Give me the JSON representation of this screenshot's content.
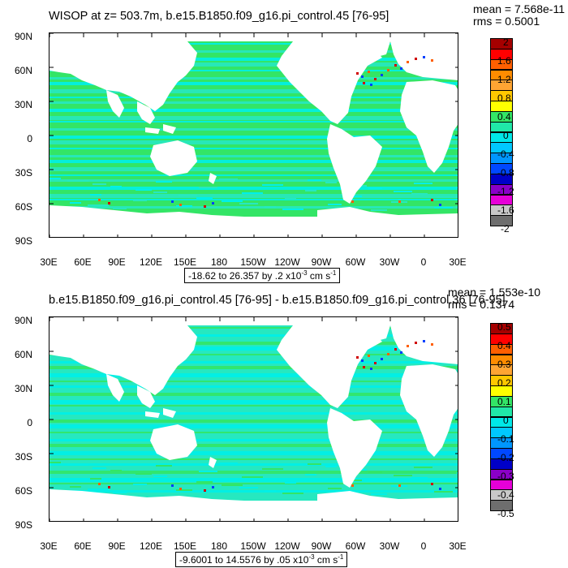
{
  "colors": {
    "bg": "#ffffff",
    "land": "#ffffff",
    "ocean_main": "#33e566",
    "ocean_alt": "#26e8c0",
    "ocean_cyan": "#00f0e8",
    "anomaly_red": "#d00000",
    "anomaly_blue": "#0040ff"
  },
  "palette": [
    "#a50000",
    "#ff0000",
    "#ff5f00",
    "#ff8c00",
    "#ffa533",
    "#ffc800",
    "#ffff00",
    "#33e566",
    "#20e8a8",
    "#00e8e8",
    "#00c8ff",
    "#0096ff",
    "#0048ff",
    "#0000c8",
    "#8a00c8",
    "#e600d8",
    "#c8c8c8",
    "#6e6e6e"
  ],
  "lat_labels": [
    "90N",
    "60N",
    "30N",
    "0",
    "30S",
    "60S",
    "90S"
  ],
  "lon_labels": [
    "30E",
    "60E",
    "90E",
    "120E",
    "150E",
    "180",
    "150W",
    "120W",
    "90W",
    "60W",
    "30W",
    "0",
    "30E"
  ],
  "panels": [
    {
      "title": "WISOP at z= 503.7m, b.e15.B1850.f09_g16.pi_control.45 [76-95]",
      "mean": "mean = 7.568e-11",
      "rms": "rms = 0.5001",
      "range_text": "-18.62 to 26.357 by .2 x10",
      "range_exp": "-3",
      "range_units": " cm s",
      "range_units_exp": "-1",
      "levels": [
        "2",
        "1.6",
        "1.2",
        "0.8",
        "0.4",
        "0",
        "-0.4",
        "-0.8",
        "-1.2",
        "-1.6",
        "-2"
      ]
    },
    {
      "title": "b.e15.B1850.f09_g16.pi_control.45 [76-95] - b.e15.B1850.f09_g16.pi_control.36 [76-95]",
      "mean": "mean = 1.553e-10",
      "rms": "rms = 0.1374",
      "range_text": "-9.6001 to 14.5576 by .05 x10",
      "range_exp": "-3",
      "range_units": " cm s",
      "range_units_exp": "-1",
      "levels": [
        "0.5",
        "0.4",
        "0.3",
        "0.2",
        "0.1",
        "0",
        "-0.1",
        "-0.2",
        "-0.3",
        "-0.4",
        "-0.5"
      ]
    }
  ]
}
